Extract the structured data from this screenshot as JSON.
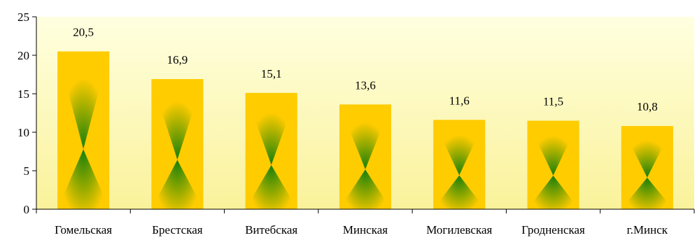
{
  "chart_data": {
    "type": "bar",
    "title": "",
    "xlabel": "",
    "ylabel": "",
    "categories": [
      "Гомельская",
      "Брестская",
      "Витебская",
      "Минская",
      "Могилевская",
      "Гродненская",
      "г.Минск"
    ],
    "values": [
      20.5,
      16.9,
      15.1,
      13.6,
      11.6,
      11.5,
      10.8
    ],
    "value_labels": [
      "20,5",
      "16,9",
      "15,1",
      "13,6",
      "11,6",
      "11,5",
      "10,8"
    ],
    "y_ticks": [
      "0",
      "5",
      "10",
      "15",
      "20",
      "25"
    ],
    "ylim": [
      0,
      25
    ],
    "grid": false,
    "legend": "none",
    "colors": {
      "plot_background_top": "#FFFFE0",
      "plot_background_bottom": "#FAF29A",
      "bar_edge": "#FFCC00",
      "bar_center": "#0B7A0B"
    }
  }
}
